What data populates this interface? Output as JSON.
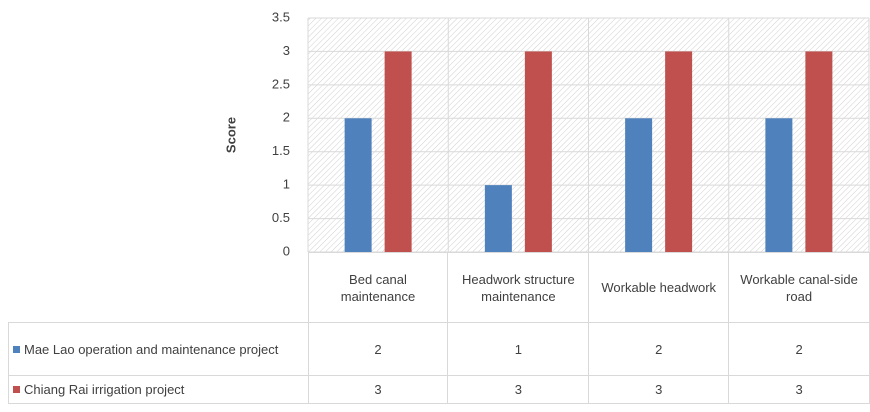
{
  "chart_data": {
    "type": "bar",
    "y_label": "Score",
    "categories": [
      "Bed canal maintenance",
      "Headwork structure maintenance",
      "Workable headwork",
      "Workable canal-side road"
    ],
    "series": [
      {
        "name": "Mae Lao operation and maintenance project",
        "color": "#4f81bd",
        "values": [
          2,
          1,
          2,
          2
        ]
      },
      {
        "name": "Chiang Rai irrigation project",
        "color": "#c0504d",
        "values": [
          3,
          3,
          3,
          3
        ]
      }
    ],
    "ylim": [
      0,
      3.5
    ],
    "yticks": [
      0,
      0.5,
      1,
      1.5,
      2,
      2.5,
      3,
      3.5
    ],
    "grid": true,
    "data_table": true
  }
}
